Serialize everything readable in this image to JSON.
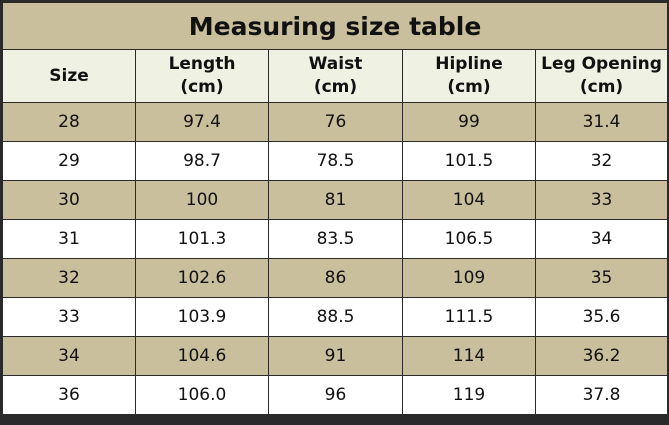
{
  "table": {
    "title": "Measuring size table",
    "header": [
      [
        "Size"
      ],
      [
        "Length",
        "(cm)"
      ],
      [
        "Waist",
        "(cm)"
      ],
      [
        "Hipline",
        "(cm)"
      ],
      [
        "Leg Opening",
        "(cm)"
      ]
    ],
    "rows": [
      [
        "28",
        "97.4",
        "76",
        "99",
        "31.4"
      ],
      [
        "29",
        "98.7",
        "78.5",
        "101.5",
        "32"
      ],
      [
        "30",
        "100",
        "81",
        "104",
        "33"
      ],
      [
        "31",
        "101.3",
        "83.5",
        "106.5",
        "34"
      ],
      [
        "32",
        "102.6",
        "86",
        "109",
        "35"
      ],
      [
        "33",
        "103.9",
        "88.5",
        "111.5",
        "35.6"
      ],
      [
        "34",
        "104.6",
        "91",
        "114",
        "36.2"
      ],
      [
        "36",
        "106.0",
        "96",
        "119",
        "37.8"
      ]
    ]
  }
}
